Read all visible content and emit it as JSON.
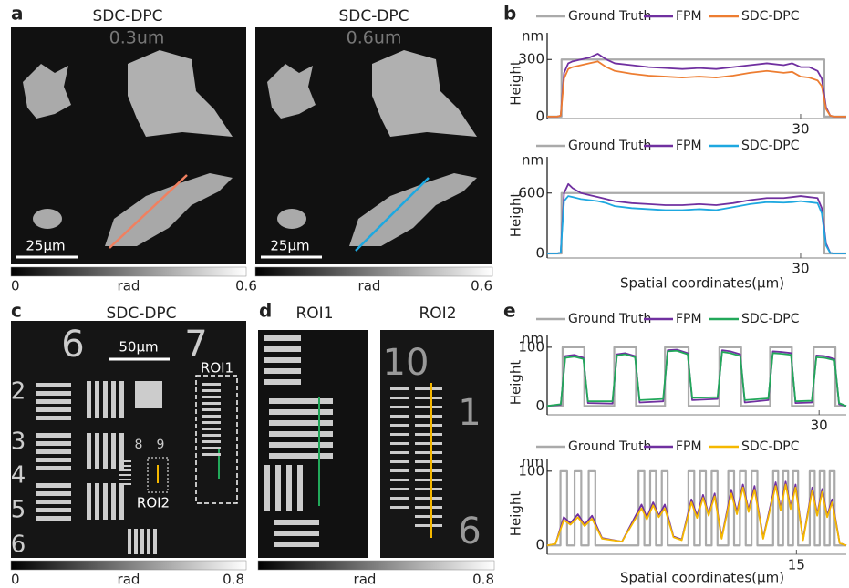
{
  "panels": {
    "a": {
      "label": "a",
      "images": [
        {
          "title": "SDC-DPC",
          "overlay": "0.3um",
          "scalebar": "25μm"
        },
        {
          "title": "SDC-DPC",
          "overlay": "0.6um",
          "scalebar": "25μm"
        }
      ],
      "colorbars": [
        {
          "min": 0,
          "unit": "rad",
          "max": 0.6
        },
        {
          "unit": "rad",
          "max": 0.6
        }
      ]
    },
    "b": {
      "label": "b",
      "xlabel": "Spatial coordinates(μm)"
    },
    "c": {
      "label": "c",
      "title": "SDC-DPC",
      "scalebar": "50μm",
      "roi_labels": [
        "ROI1",
        "ROI2"
      ],
      "target_digits": [
        "6",
        "7",
        "2",
        "3",
        "4",
        "5",
        "6",
        "8",
        "9"
      ],
      "colorbar": {
        "min": 0,
        "unit": "rad",
        "max": 0.8
      }
    },
    "d": {
      "label": "d",
      "titles": [
        "ROI1",
        "ROI2"
      ],
      "target_digits": [
        "10",
        "1",
        "6"
      ],
      "colorbar": {
        "unit": "rad",
        "max": 0.8
      }
    },
    "e": {
      "label": "e",
      "xlabel": "Spatial coordinates(μm)"
    }
  },
  "chart_data": [
    {
      "type": "line",
      "ylabel": "Height",
      "y_unit": "nm",
      "xlim": [
        0,
        35.4
      ],
      "ylim": [
        -10,
        440
      ],
      "xticks": [
        30
      ],
      "yticks": [
        0,
        300
      ],
      "legend": "top",
      "series": [
        {
          "name": "Ground Truth",
          "color": "#aaaaaa",
          "x": [
            0,
            1.7,
            1.7,
            32.8,
            32.8,
            35.4
          ],
          "values": [
            0,
            0,
            300,
            300,
            0,
            0
          ]
        },
        {
          "name": "FPM",
          "color": "#7030a0",
          "x": [
            0,
            1.2,
            1.6,
            2,
            2.5,
            3,
            4,
            5,
            6,
            7,
            8,
            10,
            12,
            14,
            16,
            18,
            20,
            22,
            24,
            26,
            28,
            29,
            30,
            31,
            32,
            32.5,
            33,
            33.5,
            34,
            35.4
          ],
          "values": [
            0,
            0,
            5,
            230,
            280,
            290,
            300,
            310,
            330,
            300,
            280,
            270,
            260,
            255,
            250,
            255,
            250,
            260,
            270,
            280,
            270,
            280,
            260,
            260,
            240,
            200,
            50,
            5,
            0,
            0
          ]
        },
        {
          "name": "SDC-DPC",
          "color": "#ed7d31",
          "x": [
            0,
            1.2,
            1.6,
            2,
            2.5,
            3,
            4,
            5,
            6,
            7,
            8,
            10,
            12,
            14,
            16,
            18,
            20,
            22,
            24,
            26,
            28,
            29,
            30,
            31,
            32,
            32.5,
            33,
            33.5,
            34,
            35.4
          ],
          "values": [
            0,
            0,
            5,
            200,
            250,
            260,
            270,
            280,
            290,
            260,
            240,
            225,
            215,
            210,
            205,
            210,
            205,
            215,
            230,
            240,
            230,
            235,
            210,
            205,
            190,
            160,
            40,
            5,
            0,
            0
          ]
        }
      ]
    },
    {
      "type": "line",
      "ylabel": "Height",
      "y_unit": "nm",
      "xlim": [
        0,
        35.4
      ],
      "ylim": [
        -45,
        960
      ],
      "xticks": [
        30
      ],
      "yticks": [
        0,
        600
      ],
      "legend": "top",
      "series": [
        {
          "name": "Ground Truth",
          "color": "#aaaaaa",
          "x": [
            0,
            1.7,
            1.7,
            32.8,
            32.8,
            35.4
          ],
          "values": [
            0,
            0,
            600,
            600,
            0,
            0
          ]
        },
        {
          "name": "FPM",
          "color": "#7030a0",
          "x": [
            0,
            1.2,
            1.6,
            2,
            2.5,
            3,
            4,
            5,
            6,
            7,
            8,
            10,
            12,
            14,
            16,
            18,
            20,
            22,
            24,
            26,
            28,
            29,
            30,
            31,
            32,
            32.5,
            33,
            33.5,
            34,
            35.4
          ],
          "values": [
            0,
            0,
            10,
            600,
            690,
            650,
            600,
            580,
            560,
            540,
            520,
            500,
            490,
            480,
            480,
            490,
            480,
            500,
            530,
            550,
            550,
            560,
            570,
            560,
            550,
            450,
            100,
            5,
            0,
            0
          ]
        },
        {
          "name": "SDC-DPC",
          "color": "#1ea8e0",
          "x": [
            0,
            1.2,
            1.6,
            2,
            2.5,
            3,
            4,
            5,
            6,
            7,
            8,
            10,
            12,
            14,
            16,
            18,
            20,
            22,
            24,
            26,
            28,
            29,
            30,
            31,
            32,
            32.5,
            33,
            33.5,
            34,
            35.4
          ],
          "values": [
            0,
            0,
            10,
            520,
            570,
            560,
            540,
            530,
            520,
            500,
            470,
            450,
            440,
            430,
            430,
            440,
            430,
            460,
            490,
            510,
            505,
            510,
            520,
            510,
            500,
            400,
            80,
            5,
            0,
            0
          ]
        }
      ]
    },
    {
      "type": "line",
      "ylabel": "Height",
      "y_unit": "nm",
      "xlim": [
        0,
        33
      ],
      "ylim": [
        -15,
        120
      ],
      "xticks": [
        30
      ],
      "yticks": [
        0,
        100
      ],
      "legend": "top",
      "series": [
        {
          "name": "Ground Truth",
          "color": "#aaaaaa",
          "x": [
            0,
            1.7,
            1.7,
            4.1,
            4.1,
            7.4,
            7.4,
            9.8,
            9.8,
            13,
            13,
            15.6,
            15.6,
            19,
            19,
            21.4,
            21.4,
            24.6,
            24.6,
            27,
            27,
            29.4,
            29.4,
            31.8,
            31.8,
            33
          ],
          "values": [
            0,
            0,
            100,
            100,
            0,
            0,
            100,
            100,
            0,
            0,
            100,
            100,
            0,
            0,
            100,
            100,
            0,
            0,
            100,
            100,
            0,
            0,
            100,
            100,
            0,
            0
          ]
        },
        {
          "name": "FPM",
          "color": "#7030a0",
          "x": [
            0,
            1.5,
            2.0,
            3.0,
            4.0,
            4.5,
            7.2,
            7.7,
            8.6,
            9.7,
            10.2,
            12.8,
            13.3,
            14.3,
            15.5,
            16,
            18.8,
            19.3,
            20.2,
            21.3,
            21.8,
            24.4,
            24.9,
            25.8,
            26.9,
            27.4,
            29.2,
            29.7,
            30.6,
            31.7,
            32.2,
            33
          ],
          "values": [
            0,
            2,
            85,
            87,
            82,
            5,
            4,
            88,
            90,
            85,
            6,
            8,
            95,
            96,
            90,
            10,
            12,
            95,
            93,
            88,
            6,
            10,
            93,
            92,
            90,
            5,
            6,
            86,
            85,
            80,
            3,
            0
          ]
        },
        {
          "name": "SDC-DPC",
          "color": "#22a85a",
          "x": [
            0,
            1.5,
            2.0,
            3.0,
            4.0,
            4.5,
            7.2,
            7.7,
            8.6,
            9.7,
            10.2,
            12.8,
            13.3,
            14.3,
            15.5,
            16,
            18.8,
            19.3,
            20.2,
            21.3,
            21.8,
            24.4,
            24.9,
            25.8,
            26.9,
            27.4,
            29.2,
            29.7,
            30.6,
            31.7,
            32.2,
            33
          ],
          "values": [
            0,
            3,
            82,
            84,
            80,
            8,
            8,
            86,
            88,
            83,
            10,
            12,
            93,
            94,
            88,
            14,
            15,
            92,
            90,
            85,
            10,
            13,
            90,
            89,
            87,
            8,
            9,
            83,
            82,
            78,
            5,
            0
          ]
        }
      ]
    },
    {
      "type": "line",
      "ylabel": "Height",
      "y_unit": "nm",
      "xlim": [
        0,
        18
      ],
      "ylim": [
        -12,
        117
      ],
      "xticks": [
        15
      ],
      "yticks": [
        0,
        100
      ],
      "legend": "top",
      "series": [
        {
          "name": "Ground Truth",
          "color": "#aaaaaa",
          "x": [
            0,
            0.8,
            0.8,
            1.2,
            1.2,
            1.65,
            1.65,
            2.05,
            2.05,
            2.5,
            2.5,
            2.9,
            2.9,
            5.5,
            5.5,
            5.85,
            5.85,
            6.2,
            6.2,
            6.55,
            6.55,
            6.9,
            6.9,
            7.25,
            7.25,
            8.5,
            8.5,
            8.85,
            8.85,
            9.2,
            9.2,
            9.55,
            9.55,
            9.9,
            9.9,
            10.25,
            10.25,
            10.9,
            10.9,
            11.25,
            11.25,
            11.6,
            11.6,
            11.95,
            11.95,
            12.3,
            12.3,
            12.65,
            12.65,
            13.6,
            13.6,
            13.9,
            13.9,
            14.2,
            14.2,
            14.5,
            14.5,
            14.8,
            14.8,
            15.1,
            15.1,
            15.8,
            15.8,
            16.1,
            16.1,
            16.4,
            16.4,
            16.7,
            16.7,
            17.0,
            17.0,
            17.3,
            17.3,
            18
          ],
          "values": [
            0,
            0,
            100,
            100,
            0,
            0,
            100,
            100,
            0,
            0,
            100,
            100,
            0,
            0,
            100,
            100,
            0,
            0,
            100,
            100,
            0,
            0,
            100,
            100,
            0,
            0,
            100,
            100,
            0,
            0,
            100,
            100,
            0,
            0,
            100,
            100,
            0,
            0,
            100,
            100,
            0,
            0,
            100,
            100,
            0,
            0,
            100,
            100,
            0,
            0,
            100,
            100,
            0,
            0,
            100,
            100,
            0,
            0,
            100,
            100,
            0,
            0,
            100,
            100,
            0,
            0,
            100,
            100,
            0,
            0,
            100,
            100,
            0,
            0
          ]
        },
        {
          "name": "FPM",
          "color": "#7030a0",
          "x": [
            0,
            0.5,
            1.0,
            1.4,
            1.85,
            2.25,
            2.7,
            3.3,
            4.5,
            5.68,
            6.0,
            6.38,
            6.72,
            7.08,
            7.6,
            8.1,
            8.68,
            9.02,
            9.38,
            9.72,
            10.08,
            10.5,
            11.08,
            11.42,
            11.78,
            12.12,
            12.48,
            13.0,
            13.75,
            14.05,
            14.35,
            14.65,
            14.95,
            15.4,
            15.95,
            16.25,
            16.55,
            16.85,
            17.15,
            17.6,
            18
          ],
          "values": [
            0,
            2,
            38,
            30,
            42,
            28,
            40,
            10,
            5,
            55,
            38,
            58,
            40,
            55,
            12,
            8,
            62,
            40,
            68,
            42,
            70,
            10,
            75,
            45,
            82,
            48,
            80,
            10,
            85,
            50,
            86,
            52,
            82,
            8,
            78,
            42,
            76,
            40,
            62,
            3,
            0
          ]
        },
        {
          "name": "SDC-DPC",
          "color": "#f5b800",
          "x": [
            0,
            0.5,
            1.0,
            1.4,
            1.85,
            2.25,
            2.7,
            3.3,
            4.5,
            5.68,
            6.0,
            6.38,
            6.72,
            7.08,
            7.6,
            8.1,
            8.68,
            9.02,
            9.38,
            9.72,
            10.08,
            10.5,
            11.08,
            11.42,
            11.78,
            12.12,
            12.48,
            13.0,
            13.75,
            14.05,
            14.35,
            14.65,
            14.95,
            15.4,
            15.95,
            16.25,
            16.55,
            16.85,
            17.15,
            17.6,
            18
          ],
          "values": [
            0,
            2,
            34,
            28,
            38,
            26,
            36,
            9,
            5,
            50,
            35,
            54,
            38,
            50,
            11,
            7,
            58,
            37,
            64,
            40,
            66,
            9,
            70,
            42,
            78,
            45,
            75,
            9,
            80,
            47,
            82,
            49,
            78,
            7,
            74,
            40,
            72,
            38,
            58,
            3,
            0
          ]
        }
      ]
    }
  ]
}
